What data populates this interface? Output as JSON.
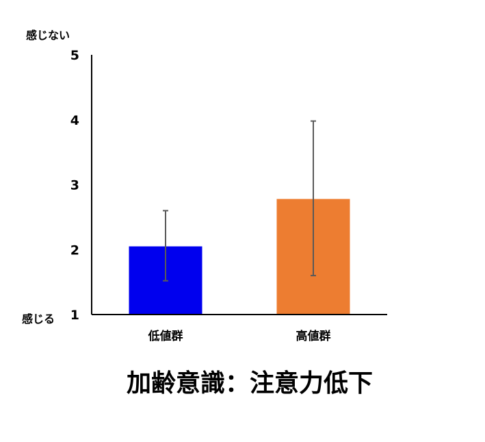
{
  "chart_data": {
    "type": "bar",
    "title": "加齢意識：注意力低下",
    "categories": [
      "低値群",
      "高値群"
    ],
    "values": [
      2.05,
      2.78
    ],
    "error_high": [
      2.6,
      3.98
    ],
    "error_low": [
      1.52,
      1.6
    ],
    "colors": [
      "#0000EE",
      "#ED7D31"
    ],
    "ylim": [
      1,
      5
    ],
    "yticks": [
      1,
      2,
      3,
      4,
      5
    ],
    "grid": false,
    "legend": false,
    "axis_notes": {
      "top": "感じない",
      "bottom": "感じる"
    }
  }
}
